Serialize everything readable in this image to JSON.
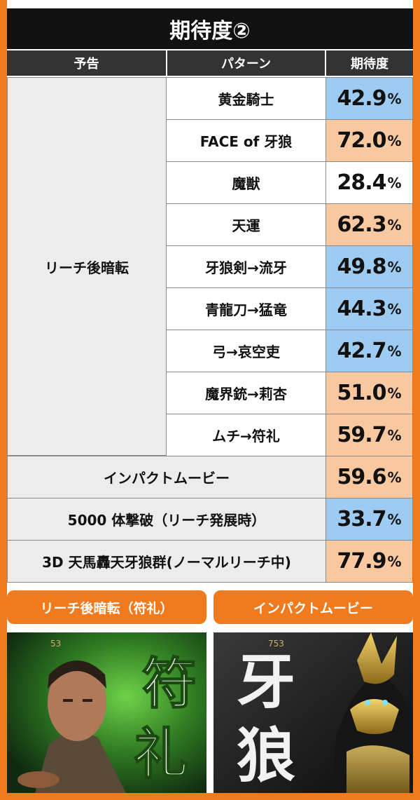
{
  "title": "期待度②",
  "headers": {
    "yokoku": "予告",
    "pattern": "パターン",
    "kitaido": "期待度"
  },
  "group_label": "リーチ後暗転",
  "percent_sign": "%",
  "rows": [
    {
      "pattern": "黄金騎士",
      "value": "42.9",
      "color": "blue"
    },
    {
      "pattern": "FACE of 牙狼",
      "value": "72.0",
      "color": "orange"
    },
    {
      "pattern": "魔獣",
      "value": "28.4",
      "color": "plain"
    },
    {
      "pattern": "天運",
      "value": "62.3",
      "color": "orange"
    },
    {
      "pattern": "牙狼剣→流牙",
      "value": "49.8",
      "color": "blue"
    },
    {
      "pattern": "青龍刀→猛竜",
      "value": "44.3",
      "color": "blue"
    },
    {
      "pattern": "弓→哀空吏",
      "value": "42.7",
      "color": "blue"
    },
    {
      "pattern": "魔界銃→莉杏",
      "value": "51.0",
      "color": "orange"
    },
    {
      "pattern": "ムチ→符礼",
      "value": "59.7",
      "color": "orange"
    }
  ],
  "wide_rows": [
    {
      "label": "インパクトムービー",
      "value": "59.6",
      "color": "orange"
    },
    {
      "label": "5000 体撃破（リーチ発展時）",
      "value": "33.7",
      "color": "blue"
    },
    {
      "label": "3D 天馬轟天牙狼群(ノーマルリーチ中)",
      "value": "77.9",
      "color": "orange"
    }
  ],
  "captions": {
    "left": "リーチ後暗転（符礼）",
    "right": "インパクトムービー"
  },
  "screenshots": {
    "left_counter": "53",
    "left_kanji": "符礼",
    "right_counter": "753",
    "right_kanji": "牙狼"
  },
  "colors": {
    "accent": "#f07a1e",
    "blue": "#9ecbf2",
    "orange": "#f8c8a0",
    "header": "#333333",
    "title_bg": "#111111"
  }
}
